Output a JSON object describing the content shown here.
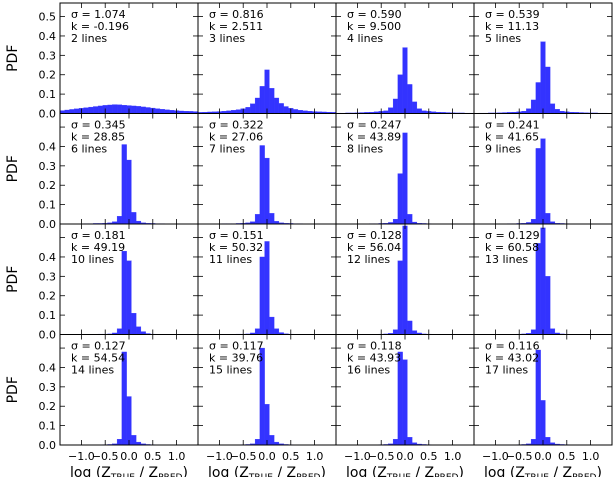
{
  "chart_data": {
    "type": "histogram-grid",
    "rows": 4,
    "cols": 4,
    "ylabel": "PDF",
    "xlabel": {
      "prefix": "log (Z",
      "sub1": "TRUE",
      "mid": " / Z",
      "sub2": "PRED",
      "suffix": ")"
    },
    "xlim": [
      -1.45,
      1.45
    ],
    "ylim": [
      0,
      0.57
    ],
    "xticks": [
      -1.0,
      -0.5,
      0.0,
      0.5,
      1.0
    ],
    "xtick_labels": [
      "−1.0",
      "−0.5",
      "0.0",
      "0.5",
      "1.0"
    ],
    "yticks": [
      0.0,
      0.1,
      0.2,
      0.3,
      0.4,
      0.5
    ],
    "ytick_labels": [
      "0.0",
      "0.1",
      "0.2",
      "0.3",
      "0.4",
      "0.5"
    ],
    "bar_color": "#3333ff",
    "bin_width": 0.1,
    "bin_start": -1.45,
    "panels": [
      {
        "sigma": "σ = 1.074",
        "k": "k = -0.196",
        "lines": "2 lines",
        "values": [
          0.015,
          0.018,
          0.021,
          0.024,
          0.027,
          0.03,
          0.033,
          0.036,
          0.039,
          0.042,
          0.044,
          0.046,
          0.045,
          0.043,
          0.041,
          0.039,
          0.037,
          0.034,
          0.031,
          0.028,
          0.025,
          0.022,
          0.019,
          0.017,
          0.015,
          0.013,
          0.012,
          0.011,
          0.01
        ]
      },
      {
        "sigma": "σ = 0.816",
        "k": "k = 2.511",
        "lines": "3 lines",
        "values": [
          0.006,
          0.007,
          0.008,
          0.009,
          0.01,
          0.012,
          0.014,
          0.017,
          0.02,
          0.025,
          0.032,
          0.05,
          0.08,
          0.14,
          0.225,
          0.13,
          0.08,
          0.052,
          0.036,
          0.027,
          0.021,
          0.017,
          0.014,
          0.012,
          0.01,
          0.009,
          0.008,
          0.007,
          0.006
        ]
      },
      {
        "sigma": "σ = 0.590",
        "k": "k = 9.500",
        "lines": "4 lines",
        "values": [
          0.002,
          0.002,
          0.003,
          0.003,
          0.004,
          0.005,
          0.006,
          0.007,
          0.009,
          0.011,
          0.014,
          0.03,
          0.075,
          0.2,
          0.34,
          0.15,
          0.06,
          0.025,
          0.014,
          0.011,
          0.009,
          0.007,
          0.006,
          0.005,
          0.004,
          0.003,
          0.003,
          0.002,
          0.002
        ]
      },
      {
        "sigma": "σ = 0.539",
        "k": "k = 11.13",
        "lines": "5 lines",
        "values": [
          0.001,
          0.002,
          0.002,
          0.003,
          0.003,
          0.004,
          0.005,
          0.006,
          0.007,
          0.009,
          0.012,
          0.025,
          0.07,
          0.16,
          0.37,
          0.24,
          0.05,
          0.022,
          0.012,
          0.009,
          0.007,
          0.006,
          0.005,
          0.004,
          0.003,
          0.003,
          0.002,
          0.002,
          0.001
        ]
      },
      {
        "sigma": "σ = 0.345",
        "k": "k = 28.85",
        "lines": "6 lines",
        "values": [
          0.0,
          0.001,
          0.001,
          0.001,
          0.001,
          0.002,
          0.002,
          0.003,
          0.003,
          0.004,
          0.006,
          0.012,
          0.04,
          0.41,
          0.33,
          0.06,
          0.015,
          0.006,
          0.004,
          0.003,
          0.002,
          0.002,
          0.001,
          0.001,
          0.001,
          0.001,
          0.0,
          0.0,
          0.0
        ]
      },
      {
        "sigma": "σ = 0.322",
        "k": "k = 27.06",
        "lines": "7 lines",
        "values": [
          0.0,
          0.001,
          0.001,
          0.001,
          0.001,
          0.002,
          0.002,
          0.002,
          0.003,
          0.004,
          0.006,
          0.012,
          0.05,
          0.405,
          0.34,
          0.055,
          0.014,
          0.006,
          0.004,
          0.003,
          0.002,
          0.002,
          0.001,
          0.001,
          0.001,
          0.001,
          0.0,
          0.0,
          0.0
        ]
      },
      {
        "sigma": "σ = 0.247",
        "k": "k = 43.89",
        "lines": "8 lines",
        "values": [
          0.0,
          0.0,
          0.001,
          0.001,
          0.001,
          0.001,
          0.001,
          0.002,
          0.002,
          0.003,
          0.004,
          0.008,
          0.025,
          0.26,
          0.47,
          0.05,
          0.01,
          0.004,
          0.003,
          0.002,
          0.001,
          0.001,
          0.001,
          0.001,
          0.0,
          0.0,
          0.0,
          0.0,
          0.0
        ]
      },
      {
        "sigma": "σ = 0.241",
        "k": "k = 41.65",
        "lines": "9 lines",
        "values": [
          0.0,
          0.0,
          0.001,
          0.001,
          0.001,
          0.001,
          0.001,
          0.002,
          0.002,
          0.003,
          0.004,
          0.008,
          0.025,
          0.39,
          0.44,
          0.055,
          0.012,
          0.004,
          0.003,
          0.002,
          0.001,
          0.001,
          0.001,
          0.001,
          0.0,
          0.0,
          0.0,
          0.0,
          0.0
        ]
      },
      {
        "sigma": "σ = 0.181",
        "k": "k = 49.19",
        "lines": "10 lines",
        "values": [
          0.0,
          0.0,
          0.0,
          0.001,
          0.001,
          0.001,
          0.001,
          0.001,
          0.002,
          0.002,
          0.003,
          0.008,
          0.03,
          0.43,
          0.38,
          0.11,
          0.04,
          0.015,
          0.005,
          0.002,
          0.001,
          0.001,
          0.001,
          0.0,
          0.0,
          0.0,
          0.0,
          0.0,
          0.0
        ]
      },
      {
        "sigma": "σ = 0.151",
        "k": "k = 50.32",
        "lines": "11 lines",
        "values": [
          0.0,
          0.0,
          0.0,
          0.001,
          0.001,
          0.001,
          0.001,
          0.001,
          0.002,
          0.002,
          0.003,
          0.008,
          0.03,
          0.4,
          0.48,
          0.09,
          0.03,
          0.01,
          0.004,
          0.002,
          0.001,
          0.001,
          0.0,
          0.0,
          0.0,
          0.0,
          0.0,
          0.0,
          0.0
        ]
      },
      {
        "sigma": "σ = 0.128",
        "k": "k = 56.04",
        "lines": "12 lines",
        "values": [
          0.0,
          0.0,
          0.0,
          0.0,
          0.001,
          0.001,
          0.001,
          0.001,
          0.001,
          0.002,
          0.003,
          0.006,
          0.025,
          0.38,
          0.56,
          0.07,
          0.02,
          0.008,
          0.003,
          0.002,
          0.001,
          0.001,
          0.0,
          0.0,
          0.0,
          0.0,
          0.0,
          0.0,
          0.0
        ]
      },
      {
        "sigma": "σ = 0.129",
        "k": "k = 60.58",
        "lines": "13 lines",
        "values": [
          0.0,
          0.0,
          0.0,
          0.0,
          0.001,
          0.001,
          0.001,
          0.001,
          0.001,
          0.002,
          0.003,
          0.006,
          0.025,
          0.47,
          0.55,
          0.3,
          0.03,
          0.008,
          0.003,
          0.002,
          0.001,
          0.001,
          0.0,
          0.0,
          0.0,
          0.0,
          0.0,
          0.0,
          0.0
        ]
      },
      {
        "sigma": "σ = 0.127",
        "k": "k = 54.54",
        "lines": "14 lines",
        "values": [
          0.0,
          0.0,
          0.0,
          0.0,
          0.001,
          0.001,
          0.001,
          0.001,
          0.001,
          0.002,
          0.003,
          0.006,
          0.03,
          0.48,
          0.25,
          0.05,
          0.015,
          0.006,
          0.003,
          0.002,
          0.001,
          0.001,
          0.0,
          0.0,
          0.0,
          0.0,
          0.0,
          0.0,
          0.0
        ]
      },
      {
        "sigma": "σ = 0.117",
        "k": "k = 39.76",
        "lines": "15 lines",
        "values": [
          0.0,
          0.0,
          0.0,
          0.0,
          0.001,
          0.001,
          0.001,
          0.001,
          0.001,
          0.002,
          0.003,
          0.006,
          0.03,
          0.5,
          0.21,
          0.05,
          0.015,
          0.006,
          0.003,
          0.002,
          0.001,
          0.001,
          0.0,
          0.0,
          0.0,
          0.0,
          0.0,
          0.0,
          0.0
        ]
      },
      {
        "sigma": "σ = 0.118",
        "k": "k = 43.93",
        "lines": "16 lines",
        "values": [
          0.0,
          0.0,
          0.0,
          0.0,
          0.001,
          0.001,
          0.001,
          0.001,
          0.001,
          0.002,
          0.003,
          0.006,
          0.03,
          0.48,
          0.44,
          0.04,
          0.012,
          0.005,
          0.003,
          0.002,
          0.001,
          0.001,
          0.0,
          0.0,
          0.0,
          0.0,
          0.0,
          0.0,
          0.0
        ]
      },
      {
        "sigma": "σ = 0.116",
        "k": "k = 43.02",
        "lines": "17 lines",
        "values": [
          0.0,
          0.0,
          0.0,
          0.0,
          0.001,
          0.001,
          0.001,
          0.001,
          0.001,
          0.002,
          0.003,
          0.006,
          0.03,
          0.49,
          0.23,
          0.04,
          0.012,
          0.005,
          0.003,
          0.002,
          0.001,
          0.001,
          0.0,
          0.0,
          0.0,
          0.0,
          0.0,
          0.0,
          0.0
        ]
      }
    ]
  }
}
